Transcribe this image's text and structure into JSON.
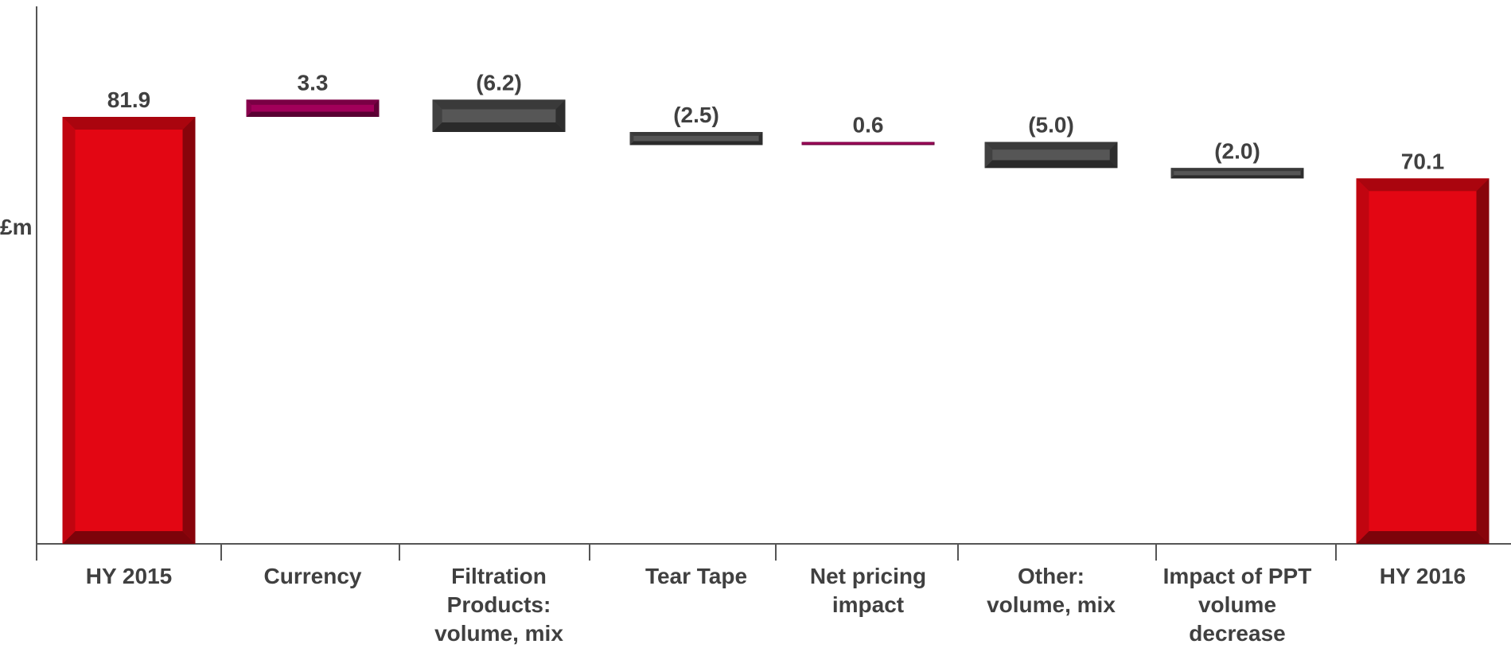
{
  "chart_data": {
    "type": "waterfall",
    "ylabel": "£m",
    "ylim": [
      0,
      90
    ],
    "colors": {
      "total": "#e30613",
      "increase": "#a1005a",
      "decrease": "#4d4d4d"
    },
    "steps": [
      {
        "category": "HY 2015",
        "value": 81.9,
        "kind": "total",
        "label": "81.9"
      },
      {
        "category": "Currency",
        "value": 3.3,
        "kind": "increase",
        "label": "3.3"
      },
      {
        "category": "Filtration\nProducts:\nvolume, mix",
        "value": -6.2,
        "kind": "decrease",
        "label": "(6.2)"
      },
      {
        "category": "Tear Tape",
        "value": -2.5,
        "kind": "decrease",
        "label": "(2.5)"
      },
      {
        "category": "Net pricing\nimpact",
        "value": 0.6,
        "kind": "increase",
        "label": "0.6"
      },
      {
        "category": "Other:\nvolume, mix",
        "value": -5.0,
        "kind": "decrease",
        "label": "(5.0)"
      },
      {
        "category": "Impact of PPT\nvolume\ndecrease",
        "value": -2.0,
        "kind": "decrease",
        "label": "(2.0)"
      },
      {
        "category": "HY 2016",
        "value": 70.1,
        "kind": "total",
        "label": "70.1"
      }
    ]
  }
}
